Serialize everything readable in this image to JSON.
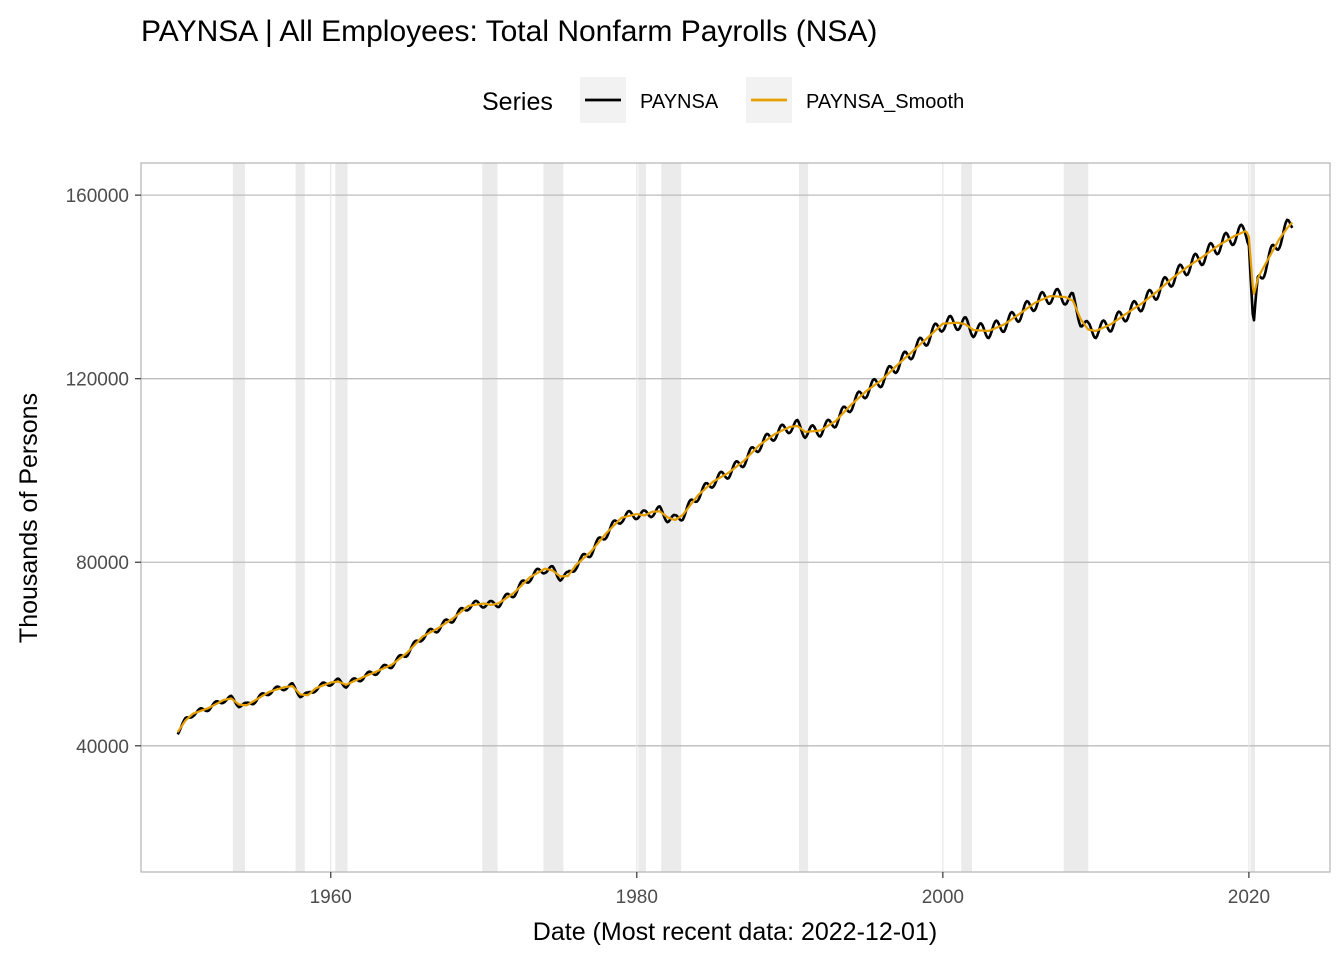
{
  "chart_data": {
    "type": "line",
    "title": "PAYNSA | All Employees: Total Nonfarm Payrolls (NSA)",
    "xlabel": "Date (Most recent data: 2022-12-01)",
    "ylabel": "Thousands of Persons",
    "xlim": [
      1947.6,
      2025.3
    ],
    "ylim": [
      12500,
      167000
    ],
    "x_ticks": [
      1960,
      1980,
      2000,
      2020
    ],
    "x_tick_labels": [
      "1960",
      "1980",
      "2000",
      "2020"
    ],
    "y_ticks": [
      40000,
      80000,
      120000,
      160000
    ],
    "y_tick_labels": [
      "40000",
      "80000",
      "120000",
      "160000"
    ],
    "grid": true,
    "legend": {
      "title": "Series",
      "position": "top",
      "entries": [
        {
          "label": "PAYNSA",
          "color": "#000000"
        },
        {
          "label": "PAYNSA_Smooth",
          "color": "#E69F00"
        }
      ]
    },
    "recessions": [
      [
        1953.6,
        1954.4
      ],
      [
        1957.7,
        1958.3
      ],
      [
        1960.3,
        1961.1
      ],
      [
        1969.9,
        1970.9
      ],
      [
        1973.9,
        1975.2
      ],
      [
        1980.1,
        1980.6
      ],
      [
        1981.6,
        1982.9
      ],
      [
        1990.6,
        1991.2
      ],
      [
        2001.2,
        2001.9
      ],
      [
        2007.9,
        2009.5
      ],
      [
        2020.1,
        2020.4
      ]
    ],
    "series": [
      {
        "name": "PAYNSA_Smooth",
        "color": "#E69F00",
        "x": [
          1950.0,
          1950.5,
          1951.0,
          1952.0,
          1953.0,
          1953.5,
          1954.0,
          1954.5,
          1955.0,
          1956.0,
          1957.0,
          1957.5,
          1958.0,
          1958.5,
          1959.0,
          1960.0,
          1960.5,
          1961.0,
          1962.0,
          1963.0,
          1964.0,
          1965.0,
          1966.0,
          1967.0,
          1968.0,
          1969.0,
          1970.0,
          1970.5,
          1971.0,
          1972.0,
          1973.0,
          1974.0,
          1974.5,
          1975.0,
          1975.5,
          1976.0,
          1977.0,
          1978.0,
          1979.0,
          1980.0,
          1980.5,
          1981.0,
          1981.5,
          1982.0,
          1982.5,
          1983.0,
          1984.0,
          1985.0,
          1986.0,
          1987.0,
          1988.0,
          1989.0,
          1990.0,
          1990.5,
          1991.0,
          1992.0,
          1993.0,
          1994.0,
          1995.0,
          1996.0,
          1997.0,
          1998.0,
          1999.0,
          2000.0,
          2001.0,
          2001.5,
          2002.0,
          2003.0,
          2004.0,
          2005.0,
          2006.0,
          2007.0,
          2008.0,
          2008.5,
          2009.0,
          2009.5,
          2010.0,
          2011.0,
          2012.0,
          2013.0,
          2014.0,
          2015.0,
          2016.0,
          2017.0,
          2018.0,
          2019.0,
          2019.8,
          2020.0,
          2020.3,
          2020.6,
          2021.0,
          2021.5,
          2022.0,
          2022.5,
          2022.9
        ],
        "y": [
          43000,
          45500,
          47000,
          48200,
          50000,
          50300,
          49000,
          48800,
          49800,
          51800,
          52800,
          53000,
          51200,
          51000,
          52500,
          53800,
          54000,
          53300,
          54800,
          56200,
          57700,
          60300,
          63800,
          65600,
          67800,
          70500,
          71000,
          70700,
          71100,
          73400,
          76700,
          78600,
          78200,
          76900,
          77000,
          79300,
          82300,
          86300,
          89700,
          90500,
          90200,
          91000,
          91100,
          89800,
          89200,
          90300,
          94600,
          97600,
          99500,
          102100,
          105500,
          107900,
          109500,
          109700,
          108400,
          108700,
          110800,
          114300,
          117300,
          119700,
          122900,
          125900,
          128900,
          132000,
          132200,
          131800,
          130600,
          130400,
          131800,
          134100,
          136500,
          138000,
          137800,
          137000,
          133000,
          130700,
          130400,
          131900,
          134200,
          136400,
          139000,
          141900,
          144400,
          146600,
          149000,
          151000,
          152200,
          151000,
          138000,
          142000,
          144500,
          147500,
          150500,
          152800,
          154300
        ]
      },
      {
        "name": "PAYNSA",
        "color": "#000000",
        "x": [
          1950.0,
          1950.5,
          1951.0,
          1952.0,
          1953.0,
          1953.5,
          1954.0,
          1954.5,
          1955.0,
          1956.0,
          1957.0,
          1957.5,
          1958.0,
          1958.5,
          1959.0,
          1960.0,
          1960.5,
          1961.0,
          1962.0,
          1963.0,
          1964.0,
          1965.0,
          1966.0,
          1967.0,
          1968.0,
          1969.0,
          1970.0,
          1970.5,
          1971.0,
          1972.0,
          1973.0,
          1974.0,
          1974.5,
          1975.0,
          1975.5,
          1976.0,
          1977.0,
          1978.0,
          1979.0,
          1980.0,
          1980.5,
          1981.0,
          1981.5,
          1982.0,
          1982.5,
          1983.0,
          1984.0,
          1985.0,
          1986.0,
          1987.0,
          1988.0,
          1989.0,
          1990.0,
          1990.5,
          1991.0,
          1992.0,
          1993.0,
          1994.0,
          1995.0,
          1996.0,
          1997.0,
          1998.0,
          1999.0,
          2000.0,
          2001.0,
          2001.5,
          2002.0,
          2003.0,
          2004.0,
          2005.0,
          2006.0,
          2007.0,
          2008.0,
          2008.5,
          2009.0,
          2009.5,
          2010.0,
          2011.0,
          2012.0,
          2013.0,
          2014.0,
          2015.0,
          2016.0,
          2017.0,
          2018.0,
          2019.0,
          2019.8,
          2020.0,
          2020.3,
          2020.6,
          2021.0,
          2021.5,
          2022.0,
          2022.5,
          2022.9
        ],
        "y": [
          43000,
          45500,
          47000,
          48200,
          50000,
          50300,
          49000,
          48800,
          49800,
          51800,
          52800,
          53000,
          51200,
          51000,
          52500,
          53800,
          54000,
          53300,
          54800,
          56200,
          57700,
          60300,
          63800,
          65600,
          67800,
          70500,
          71000,
          70700,
          71100,
          73400,
          76700,
          78600,
          78200,
          76900,
          77000,
          79300,
          82300,
          86300,
          89700,
          90500,
          90200,
          91000,
          91100,
          89800,
          89200,
          90300,
          94600,
          97600,
          99500,
          102100,
          105500,
          107900,
          109500,
          109700,
          108400,
          108700,
          110800,
          114300,
          117300,
          119700,
          122900,
          125900,
          128900,
          132000,
          132200,
          131800,
          130600,
          130400,
          131800,
          134100,
          136500,
          138000,
          137800,
          137000,
          133000,
          130700,
          130400,
          131900,
          134200,
          136400,
          139000,
          141900,
          144400,
          146600,
          149000,
          151000,
          152200,
          150800,
          130500,
          141500,
          144000,
          147300,
          150300,
          152800,
          154300
        ],
        "seasonal_amplitude": 0.012
      }
    ]
  }
}
